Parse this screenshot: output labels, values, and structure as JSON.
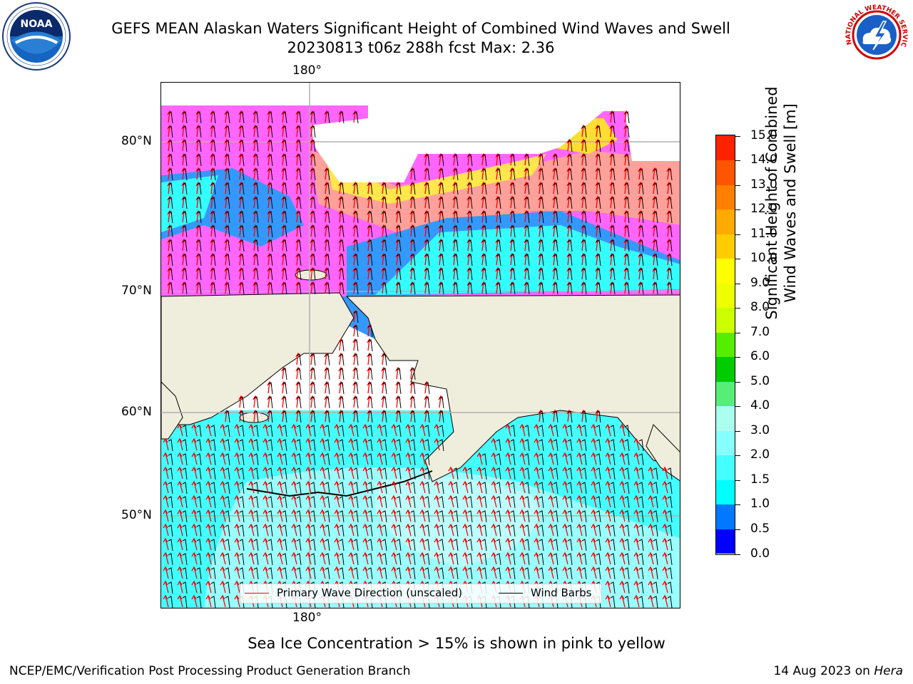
{
  "title": {
    "line1": "GEFS MEAN Alaskan Waters Significant Height of Combined Wind Waves and Swell",
    "line2": "20230813 t06z 288h fcst   Max: 2.36"
  },
  "logos": {
    "left": {
      "name": "noaa-logo",
      "text": "NOAA",
      "ring_text": "NATIONAL OCEANIC AND ATMOSPHERIC ADMINISTRATION · U.S. DEPARTMENT OF COMMERCE"
    },
    "right": {
      "name": "national-weather-service-logo",
      "ring_text": "NATIONAL WEATHER SERVICE"
    }
  },
  "map": {
    "lon_label_top": "180°",
    "lon_label_bottom": "180°",
    "lat_labels": [
      "80°N",
      "70°N",
      "60°N",
      "50°N"
    ],
    "colors": {
      "land": "#efeddc",
      "coast": "#000000",
      "grid": "#b0b0b0",
      "wave_arrow": "#ff0000",
      "barb": "#000000"
    }
  },
  "legend": {
    "items": [
      {
        "label": "Primary Wave Direction (unscaled)",
        "color": "#ff0000"
      },
      {
        "label": "Wind Barbs",
        "color": "#000000"
      }
    ]
  },
  "colorbar": {
    "title_line1": "Significant Height of Combined",
    "title_line2": "Wind Waves and Swell [m]",
    "ticks": [
      "0.0",
      "0.5",
      "1.0",
      "1.5",
      "2.0",
      "3.0",
      "4.0",
      "5.0",
      "6.0",
      "7.0",
      "8.0",
      "9.0",
      "10.0",
      "11.0",
      "12.0",
      "13.0",
      "14.0",
      "15.0"
    ],
    "colors": [
      "#0000ff",
      "#0078ff",
      "#00ffff",
      "#44ffff",
      "#88ffff",
      "#aaffee",
      "#55ee77",
      "#00cc00",
      "#55ee00",
      "#ccff00",
      "#eeff00",
      "#ffff00",
      "#ffcc00",
      "#ffaa00",
      "#ff8000",
      "#ff5500",
      "#ff2200",
      "#ff0000"
    ]
  },
  "note": "Sea Ice Concentration > 15% is shown in pink to yellow",
  "footer": {
    "left": "NCEP/EMC/Verification Post Processing Product Generation Branch",
    "right_prefix": "14 Aug 2023 on ",
    "right_host": "Hera"
  }
}
